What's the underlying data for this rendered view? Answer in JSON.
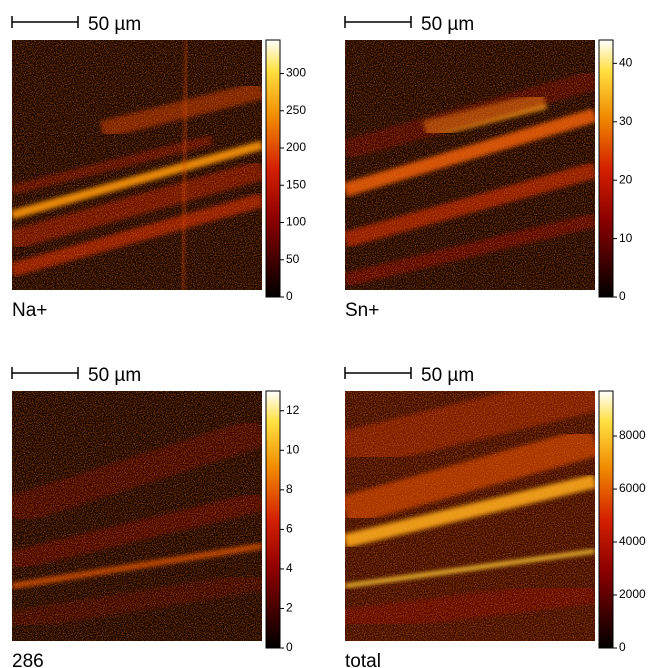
{
  "panels": [
    {
      "scale_bar": "50 µm",
      "label": "Na+",
      "colorbar": {
        "lim": [
          0,
          345
        ],
        "ticks": [
          0,
          50,
          100,
          150,
          200,
          250,
          300
        ]
      }
    },
    {
      "scale_bar": "50 µm",
      "label": "Sn+",
      "colorbar": {
        "lim": [
          0,
          44
        ],
        "ticks": [
          0,
          10,
          20,
          30,
          40
        ]
      }
    },
    {
      "scale_bar": "50 µm",
      "label": "286",
      "colorbar": {
        "lim": [
          0,
          13
        ],
        "ticks": [
          0,
          2,
          4,
          6,
          8,
          10,
          12
        ]
      }
    },
    {
      "scale_bar": "50 µm",
      "label": "total",
      "colorbar": {
        "lim": [
          0,
          9700
        ],
        "ticks": [
          0,
          2000,
          4000,
          6000,
          8000
        ]
      }
    }
  ]
}
